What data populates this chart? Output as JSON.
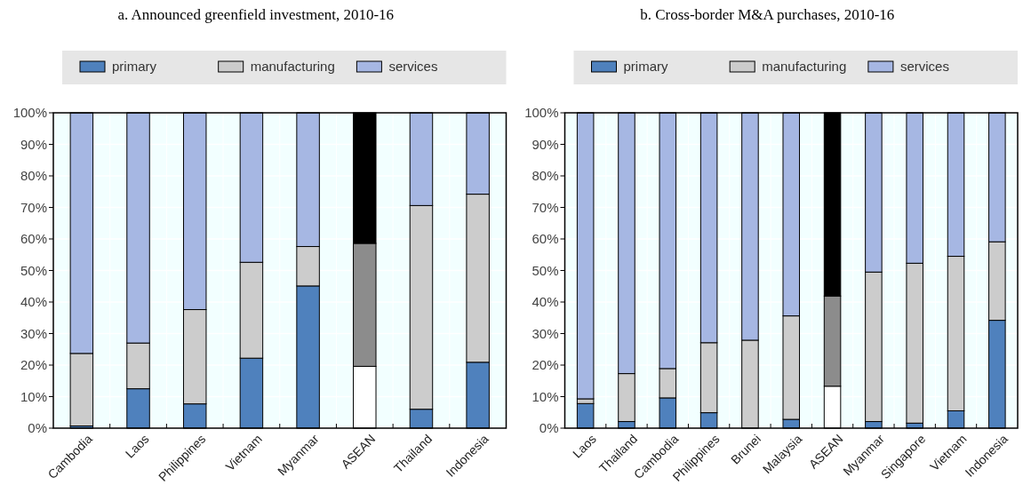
{
  "chart_data": [
    {
      "type": "bar",
      "title": "a. Announced greenfield investment, 2010-16",
      "stacked": true,
      "legend": "top",
      "grid": true,
      "categories": [
        "Cambodia",
        "Laos",
        "Philippines",
        "Vietnam",
        "Myanmar",
        "ASEAN",
        "Thailand",
        "Indonesia"
      ],
      "ylim": [
        0,
        100
      ],
      "yticks": [
        {
          "value": 0,
          "label": "0%"
        },
        {
          "value": 10,
          "label": "10%"
        },
        {
          "value": 20,
          "label": "20%"
        },
        {
          "value": 30,
          "label": "30%"
        },
        {
          "value": 40,
          "label": "40%"
        },
        {
          "value": 50,
          "label": "50%"
        },
        {
          "value": 60,
          "label": "60%"
        },
        {
          "value": 70,
          "label": "70%"
        },
        {
          "value": 80,
          "label": "80%"
        },
        {
          "value": 90,
          "label": "90%"
        },
        {
          "value": 100,
          "label": "100%"
        }
      ],
      "series": [
        {
          "name": "primary",
          "color": "#4f81bd",
          "colors": [
            "#4f81bd",
            "#4f81bd",
            "#4f81bd",
            "#4f81bd",
            "#4f81bd",
            "#ffffff",
            "#4f81bd",
            "#4f81bd"
          ],
          "values": [
            0.7,
            12.5,
            7.7,
            22.2,
            45.1,
            19.6,
            6.0,
            20.9
          ]
        },
        {
          "name": "manufacturing",
          "color": "#cccccc",
          "colors": [
            "#cccccc",
            "#cccccc",
            "#cccccc",
            "#cccccc",
            "#cccccc",
            "#8c8c8c",
            "#cccccc",
            "#cccccc"
          ],
          "values": [
            23.0,
            14.5,
            29.9,
            30.4,
            12.5,
            39.0,
            64.6,
            53.3
          ]
        },
        {
          "name": "services",
          "color": "#a6b7e3",
          "colors": [
            "#a6b7e3",
            "#a6b7e3",
            "#a6b7e3",
            "#a6b7e3",
            "#a6b7e3",
            "#000000",
            "#a6b7e3",
            "#a6b7e3"
          ],
          "values": [
            76.3,
            73.0,
            62.4,
            47.4,
            42.4,
            41.4,
            29.4,
            25.8
          ]
        }
      ]
    },
    {
      "type": "bar",
      "title": "b. Cross-border M&A purchases, 2010-16",
      "stacked": true,
      "legend": "top",
      "grid": true,
      "categories": [
        "Laos",
        "Thailand",
        "Cambodia",
        "Philippines",
        "Brunei",
        "Malaysia",
        "ASEAN",
        "Myanmar",
        "Singapore",
        "Vietnam",
        "Indonesia"
      ],
      "ylim": [
        0,
        100
      ],
      "yticks": [
        {
          "value": 0,
          "label": "0%"
        },
        {
          "value": 10,
          "label": "10%"
        },
        {
          "value": 20,
          "label": "20%"
        },
        {
          "value": 30,
          "label": "30%"
        },
        {
          "value": 40,
          "label": "40%"
        },
        {
          "value": 50,
          "label": "50%"
        },
        {
          "value": 60,
          "label": "60%"
        },
        {
          "value": 70,
          "label": "70%"
        },
        {
          "value": 80,
          "label": "80%"
        },
        {
          "value": 90,
          "label": "90%"
        },
        {
          "value": 100,
          "label": "100%"
        }
      ],
      "series": [
        {
          "name": "primary",
          "color": "#4f81bd",
          "colors": [
            "#4f81bd",
            "#4f81bd",
            "#4f81bd",
            "#4f81bd",
            "#4f81bd",
            "#4f81bd",
            "#ffffff",
            "#4f81bd",
            "#4f81bd",
            "#4f81bd",
            "#4f81bd"
          ],
          "values": [
            7.8,
            2.1,
            9.6,
            4.9,
            0,
            2.8,
            13.3,
            2.1,
            1.6,
            5.5,
            34.2
          ]
        },
        {
          "name": "manufacturing",
          "color": "#cccccc",
          "colors": [
            "#cccccc",
            "#cccccc",
            "#cccccc",
            "#cccccc",
            "#cccccc",
            "#cccccc",
            "#8c8c8c",
            "#cccccc",
            "#cccccc",
            "#cccccc",
            "#cccccc"
          ],
          "values": [
            1.5,
            15.2,
            9.3,
            22.2,
            27.9,
            32.8,
            28.6,
            47.4,
            50.7,
            49.0,
            24.9
          ]
        },
        {
          "name": "services",
          "color": "#a6b7e3",
          "colors": [
            "#a6b7e3",
            "#a6b7e3",
            "#a6b7e3",
            "#a6b7e3",
            "#a6b7e3",
            "#a6b7e3",
            "#000000",
            "#a6b7e3",
            "#a6b7e3",
            "#a6b7e3",
            "#a6b7e3"
          ],
          "values": [
            90.7,
            82.7,
            81.1,
            72.9,
            72.1,
            64.4,
            58.1,
            50.5,
            47.7,
            45.5,
            40.9
          ]
        }
      ]
    }
  ]
}
